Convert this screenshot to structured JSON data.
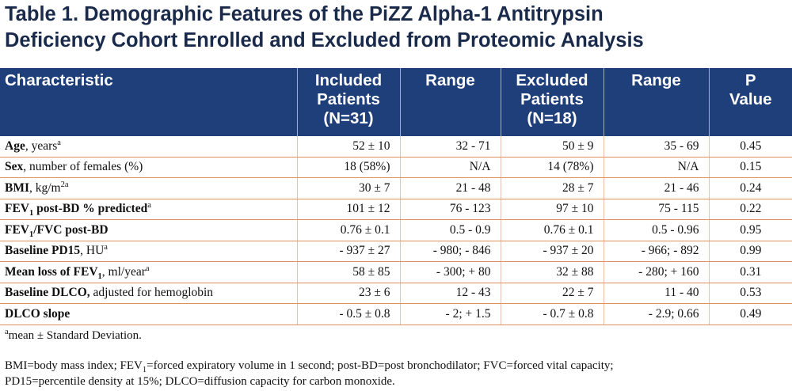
{
  "title": {
    "line1": "Table 1. Demographic Features of the PiZZ Alpha-1 Antitrypsin",
    "line2": "Deficiency Cohort Enrolled and Excluded from Proteomic Analysis"
  },
  "headers": [
    [
      "Characteristic"
    ],
    [
      "Included",
      "Patients",
      "(N=31)"
    ],
    [
      "Range"
    ],
    [
      "Excluded",
      "Patients",
      "(N=18)"
    ],
    [
      "Range"
    ],
    [
      "P",
      "Value"
    ]
  ],
  "rows": [
    {
      "label_bold": "Age",
      "label_sub": "",
      "label_bold_tail": "",
      "label_plain": ", years",
      "label_sup": "a",
      "cells": [
        "52 ± 10",
        "32 - 71",
        "50 ± 9",
        "35 - 69",
        "0.45"
      ]
    },
    {
      "label_bold": "Sex",
      "label_sub": "",
      "label_bold_tail": "",
      "label_plain": ", number of females (%)",
      "label_sup": "",
      "cells": [
        "18 (58%)",
        "N/A",
        "14 (78%)",
        "N/A",
        "0.15"
      ]
    },
    {
      "label_bold": "BMI",
      "label_sub": "",
      "label_bold_tail": "",
      "label_plain": ", kg/m",
      "label_sup": "2a",
      "cells": [
        "30 ± 7",
        "21 - 48",
        "28 ± 7",
        "21 - 46",
        "0.24"
      ]
    },
    {
      "label_bold": "FEV",
      "label_sub": "1",
      "label_bold_tail": " post-BD % predicted",
      "label_plain": "",
      "label_sup": "a",
      "cells": [
        "101 ± 12",
        "76 - 123",
        "97 ± 10",
        "75 - 115",
        "0.22"
      ]
    },
    {
      "label_bold": "FEV",
      "label_sub": "1",
      "label_bold_tail": "/FVC post-BD",
      "label_plain": "",
      "label_sup": "",
      "cells": [
        "0.76 ± 0.1",
        "0.5 - 0.9",
        "0.76 ± 0.1",
        "0.5 - 0.96",
        "0.95"
      ]
    },
    {
      "label_bold": "Baseline PD15",
      "label_sub": "",
      "label_bold_tail": "",
      "label_plain": ", HU",
      "label_sup": "a",
      "cells": [
        "- 937 ± 27",
        "- 980; - 846",
        "- 937 ± 20",
        "- 966; - 892",
        "0.99"
      ]
    },
    {
      "label_bold": "Mean loss of FEV",
      "label_sub": "1",
      "label_bold_tail": "",
      "label_plain": ", ml/year",
      "label_sup": "a",
      "cells": [
        "58 ± 85",
        "- 300; + 80",
        "32 ± 88",
        "- 280; + 160",
        "0.31"
      ]
    },
    {
      "label_bold": "Baseline DLCO,",
      "label_sub": "",
      "label_bold_tail": "",
      "label_plain": " adjusted for hemoglobin",
      "label_sup": "",
      "cells": [
        "23 ± 6",
        "12 - 43",
        "22 ± 7",
        "11 - 40",
        "0.53"
      ]
    },
    {
      "label_bold": "DLCO slope",
      "label_sub": "",
      "label_bold_tail": "",
      "label_plain": "",
      "label_sup": "",
      "cells": [
        "- 0.5 ± 0.8",
        "- 2; + 1.5",
        "- 0.7 ± 0.8",
        "- 2.9; 0.66",
        "0.49"
      ]
    }
  ],
  "footnotes": {
    "a_mark": "a",
    "a_text": "mean ± Standard Deviation.",
    "abbr_line1_pre": "BMI=body mass index; FEV",
    "abbr_line1_sub": "1",
    "abbr_line1_post": "=forced expiratory volume in 1 second; post-BD=post bronchodilator; FVC=forced vital capacity;",
    "abbr_line2": "PD15=percentile density at 15%; DLCO=diffusion capacity for carbon monoxide."
  }
}
